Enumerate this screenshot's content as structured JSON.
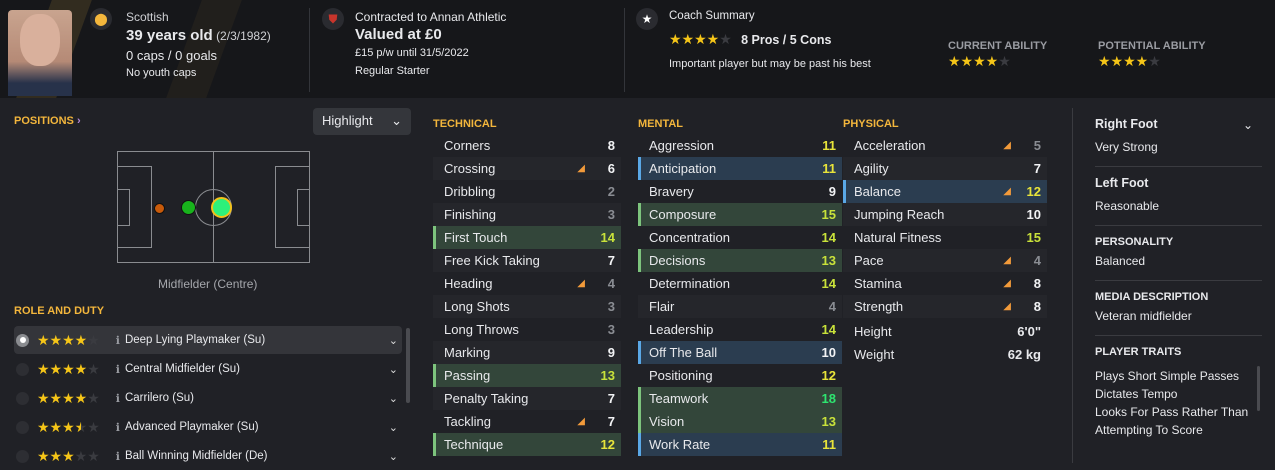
{
  "header": {
    "nationality": "Scottish",
    "age": "39 years old",
    "dob": "(2/3/1982)",
    "caps": "0 caps / 0 goals",
    "youth_caps": "No youth caps",
    "contract": "Contracted to Annan Athletic",
    "value": "Valued at £0",
    "wage": "£15 p/w until 31/5/2022",
    "squad_status": "Regular Starter",
    "coach_title": "Coach Summary",
    "coach_stars": 4,
    "pros_cons": "8 Pros / 5 Cons",
    "coach_text": "Important player but may be past his best",
    "current_ability_label": "CURRENT ABILITY",
    "current_ability_stars": 4,
    "potential_ability_label": "POTENTIAL ABILITY",
    "potential_ability_stars": 4
  },
  "positions": {
    "title": "POSITIONS",
    "highlight_label": "Highlight",
    "position_name": "Midfielder (Centre)"
  },
  "roles": {
    "title": "ROLE AND DUTY",
    "items": [
      {
        "name": "Deep Lying Playmaker (Su)",
        "stars": 4,
        "selected": true
      },
      {
        "name": "Central Midfielder (Su)",
        "stars": 4
      },
      {
        "name": "Carrilero (Su)",
        "stars": 4
      },
      {
        "name": "Advanced Playmaker (Su)",
        "stars": 3.5
      },
      {
        "name": "Ball Winning Midfielder (De)",
        "stars": 3
      }
    ]
  },
  "technical": {
    "title": "TECHNICAL",
    "attrs": [
      {
        "n": "Corners",
        "v": "8"
      },
      {
        "n": "Crossing",
        "v": "6",
        "arrow": true
      },
      {
        "n": "Dribbling",
        "v": "2"
      },
      {
        "n": "Finishing",
        "v": "3"
      },
      {
        "n": "First Touch",
        "v": "14",
        "hl": "g"
      },
      {
        "n": "Free Kick Taking",
        "v": "7"
      },
      {
        "n": "Heading",
        "v": "4",
        "arrow": true
      },
      {
        "n": "Long Shots",
        "v": "3"
      },
      {
        "n": "Long Throws",
        "v": "3"
      },
      {
        "n": "Marking",
        "v": "9"
      },
      {
        "n": "Passing",
        "v": "13",
        "hl": "g"
      },
      {
        "n": "Penalty Taking",
        "v": "7"
      },
      {
        "n": "Tackling",
        "v": "7",
        "arrow": true
      },
      {
        "n": "Technique",
        "v": "12",
        "hl": "g"
      }
    ]
  },
  "mental": {
    "title": "MENTAL",
    "attrs": [
      {
        "n": "Aggression",
        "v": "11"
      },
      {
        "n": "Anticipation",
        "v": "11",
        "hl": "b"
      },
      {
        "n": "Bravery",
        "v": "9"
      },
      {
        "n": "Composure",
        "v": "15",
        "hl": "g"
      },
      {
        "n": "Concentration",
        "v": "14"
      },
      {
        "n": "Decisions",
        "v": "13",
        "hl": "g"
      },
      {
        "n": "Determination",
        "v": "14"
      },
      {
        "n": "Flair",
        "v": "4"
      },
      {
        "n": "Leadership",
        "v": "14"
      },
      {
        "n": "Off The Ball",
        "v": "10",
        "hl": "b"
      },
      {
        "n": "Positioning",
        "v": "12"
      },
      {
        "n": "Teamwork",
        "v": "18",
        "hl": "g"
      },
      {
        "n": "Vision",
        "v": "13",
        "hl": "g"
      },
      {
        "n": "Work Rate",
        "v": "11",
        "hl": "b"
      }
    ]
  },
  "physical": {
    "title": "PHYSICAL",
    "attrs": [
      {
        "n": "Acceleration",
        "v": "5",
        "arrow": true
      },
      {
        "n": "Agility",
        "v": "7"
      },
      {
        "n": "Balance",
        "v": "12",
        "hl": "b",
        "arrow": true
      },
      {
        "n": "Jumping Reach",
        "v": "10"
      },
      {
        "n": "Natural Fitness",
        "v": "15"
      },
      {
        "n": "Pace",
        "v": "4",
        "arrow": true
      },
      {
        "n": "Stamina",
        "v": "8",
        "arrow": true
      },
      {
        "n": "Strength",
        "v": "8",
        "arrow": true
      }
    ],
    "height_label": "Height",
    "height": "6'0\"",
    "weight_label": "Weight",
    "weight": "62 kg"
  },
  "side": {
    "right_foot_label": "Right Foot",
    "right_foot": "Very Strong",
    "left_foot_label": "Left Foot",
    "left_foot": "Reasonable",
    "personality_label": "PERSONALITY",
    "personality": "Balanced",
    "media_label": "MEDIA DESCRIPTION",
    "media": "Veteran midfielder",
    "traits_label": "PLAYER TRAITS",
    "traits": [
      "Plays Short Simple Passes",
      "Dictates Tempo",
      "Looks For Pass Rather Than Attempting To Score"
    ]
  },
  "colors": {
    "accent": "#f3b63c",
    "star": "#f5c518",
    "arrow": "#f29a3a",
    "green_highlight": "#33463a",
    "blue_highlight": "#2b3d50"
  }
}
